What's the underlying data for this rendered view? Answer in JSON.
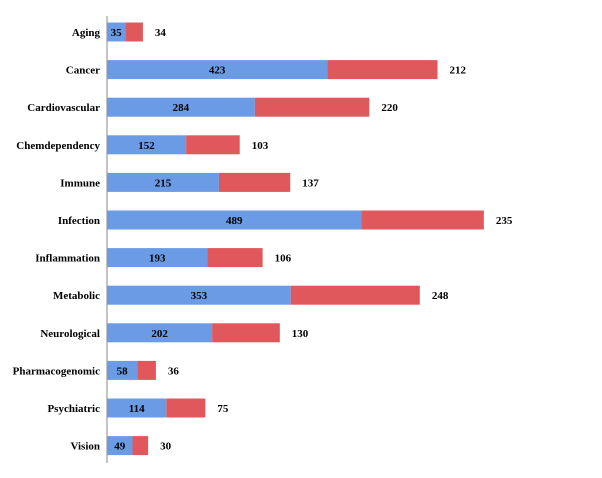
{
  "chart_data": {
    "type": "bar",
    "orientation": "horizontal",
    "stacked": true,
    "categories": [
      "Aging",
      "Cancer",
      "Cardiovascular",
      "Chemdependency",
      "Immune",
      "Infection",
      "Inflammation",
      "Metabolic",
      "Neurological",
      "Pharmacogenomic",
      "Psychiatric",
      "Vision"
    ],
    "series": [
      {
        "values": [
          35,
          423,
          284,
          152,
          215,
          489,
          193,
          353,
          202,
          58,
          114,
          49
        ],
        "color": "#6a9be4"
      },
      {
        "values": [
          34,
          212,
          220,
          103,
          137,
          235,
          106,
          248,
          130,
          36,
          75,
          30
        ],
        "color": "#e0585c"
      }
    ],
    "title": "",
    "xlabel": "",
    "ylabel": "",
    "xlim": [
      0,
      800
    ],
    "grid": false,
    "legend": "none"
  }
}
